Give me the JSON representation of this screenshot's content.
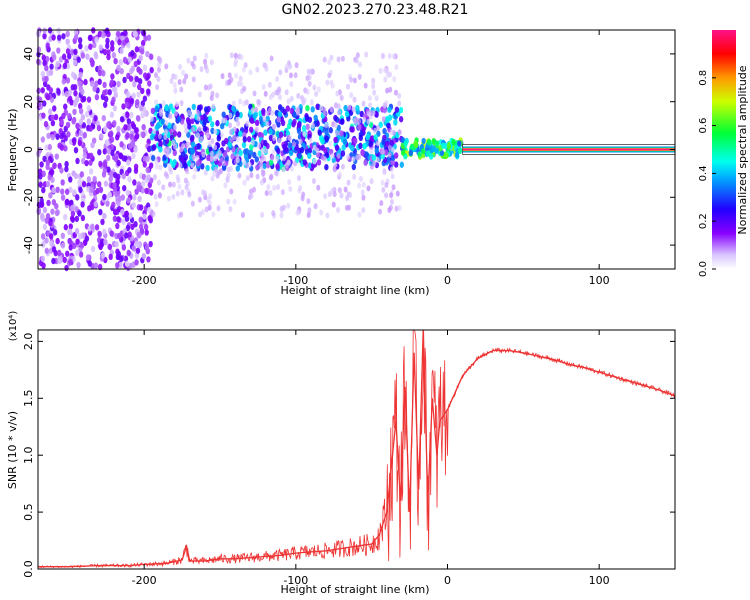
{
  "title": "GN02.2023.270.23.48.R21",
  "chart_data": [
    {
      "type": "heatmap",
      "title": "",
      "xlabel": "Height of straight line (km)",
      "ylabel": "Frequency (Hz)",
      "xlim": [
        -270,
        150
      ],
      "ylim": [
        -50,
        50
      ],
      "xticks": [
        -200,
        -100,
        0,
        100
      ],
      "xtick_labels": [
        "-200",
        "-100",
        "0",
        "100"
      ],
      "yticks": [
        -40,
        -20,
        0,
        20,
        40
      ],
      "ytick_labels": [
        "-40",
        "-20",
        "0",
        "20",
        "40"
      ],
      "colorbar": {
        "label": "Normalized spectral amplitude",
        "range": [
          0,
          1
        ],
        "ticks": [
          0.0,
          0.2,
          0.4,
          0.6,
          0.8
        ],
        "tick_labels": [
          "0.0",
          "0.2",
          "0.4",
          "0.6",
          "0.8"
        ],
        "colormap": "rainbow (white to violet to blue to cyan to green to yellow to red to pink)"
      },
      "regions": [
        {
          "x_range": [
            -270,
            -195
          ],
          "freq_range": [
            -50,
            50
          ],
          "amplitude": 0.05
        },
        {
          "x_range": [
            -195,
            -30
          ],
          "freq_range": [
            -8,
            18
          ],
          "amplitude": 0.3
        },
        {
          "x_range": [
            -30,
            10
          ],
          "freq_range": [
            -3,
            4
          ],
          "amplitude": 0.6
        },
        {
          "x_range": [
            10,
            150
          ],
          "freq_range": [
            -1,
            1
          ],
          "amplitude": 1.0
        }
      ]
    },
    {
      "type": "line",
      "title": "",
      "xlabel": "Height of straight line (km)",
      "ylabel": "SNR (10 * v/v)",
      "y_multiplier": "(x10⁴)",
      "xlim": [
        -270,
        150
      ],
      "ylim": [
        0,
        2.1
      ],
      "xticks": [
        -200,
        -100,
        0,
        100
      ],
      "xtick_labels": [
        "-200",
        "-100",
        "0",
        "100"
      ],
      "yticks": [
        0.0,
        0.5,
        1.0,
        1.5,
        2.0
      ],
      "ytick_labels": [
        "0.0",
        "0.5",
        "1.0",
        "1.5",
        "2.0"
      ],
      "color": "#ee3333",
      "series": [
        {
          "x": [
            -270,
            -250,
            -230,
            -210,
            -200,
            -185,
            -175,
            -172,
            -170,
            -160,
            -150,
            -140,
            -130,
            -120,
            -110,
            -100,
            -90,
            -80,
            -70,
            -60,
            -50,
            -45,
            -40,
            -37,
            -34,
            -31,
            -28,
            -25,
            -22,
            -19,
            -16,
            -13,
            -10,
            -7,
            -5,
            0,
            10,
            20,
            30,
            40,
            50,
            60,
            70,
            80,
            90,
            100,
            110,
            120,
            130,
            140,
            150
          ],
          "y": [
            0.02,
            0.02,
            0.03,
            0.03,
            0.04,
            0.05,
            0.08,
            0.2,
            0.07,
            0.07,
            0.09,
            0.09,
            0.1,
            0.11,
            0.12,
            0.14,
            0.15,
            0.16,
            0.18,
            0.2,
            0.22,
            0.3,
            0.5,
            0.9,
            1.3,
            0.6,
            1.6,
            0.5,
            1.9,
            0.7,
            2.1,
            0.6,
            1.5,
            1.0,
            1.3,
            1.4,
            1.7,
            1.85,
            1.92,
            1.92,
            1.9,
            1.87,
            1.84,
            1.8,
            1.77,
            1.73,
            1.69,
            1.65,
            1.61,
            1.57,
            1.52
          ]
        }
      ]
    }
  ]
}
